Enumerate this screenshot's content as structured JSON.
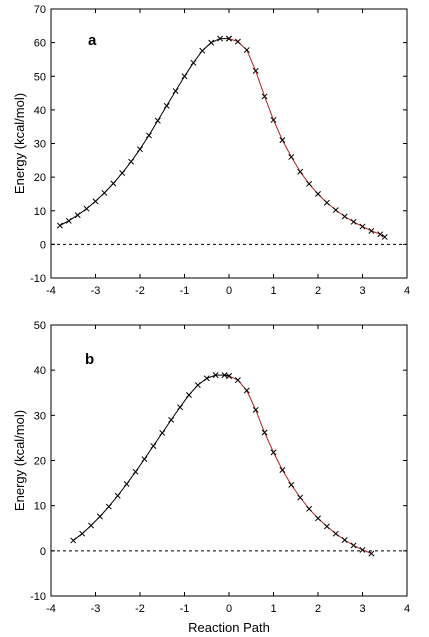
{
  "chart_data": [
    {
      "type": "line",
      "panel_label": "a",
      "xlabel": "",
      "ylabel": "Energy (kcal/mol)",
      "xlim": [
        -4,
        4
      ],
      "ylim": [
        -10,
        70
      ],
      "xticks": [
        -4,
        -3,
        -2,
        -1,
        0,
        1,
        2,
        3,
        4
      ],
      "yticks": [
        -10,
        0,
        10,
        20,
        30,
        40,
        50,
        60,
        70
      ],
      "reference_line": {
        "y": 0,
        "style": "dashed"
      },
      "series": [
        {
          "marker": "x",
          "color": "#000000",
          "x": [
            -3.8,
            -3.6,
            -3.4,
            -3.2,
            -3.0,
            -2.8,
            -2.6,
            -2.4,
            -2.2,
            -2.0,
            -1.8,
            -1.6,
            -1.4,
            -1.2,
            -1.0,
            -0.8,
            -0.6,
            -0.4,
            -0.2,
            0.0
          ],
          "y": [
            5.6,
            7.0,
            8.7,
            10.6,
            12.8,
            15.3,
            18.1,
            21.2,
            24.6,
            28.3,
            32.4,
            36.8,
            41.2,
            45.6,
            50.0,
            54.0,
            57.6,
            60.0,
            61.2,
            61.2
          ]
        },
        {
          "marker": "x",
          "color": "#b22222",
          "x": [
            0.0,
            0.2,
            0.4,
            0.6,
            0.8,
            1.0,
            1.2,
            1.4,
            1.6,
            1.8,
            2.0,
            2.2,
            2.4,
            2.6,
            2.8,
            3.0,
            3.2,
            3.4,
            3.5
          ],
          "y": [
            61.2,
            60.3,
            57.8,
            51.6,
            44.0,
            37.0,
            31.0,
            26.0,
            21.6,
            18.0,
            15.0,
            12.4,
            10.2,
            8.3,
            6.7,
            5.3,
            4.0,
            3.0,
            2.2
          ]
        }
      ]
    },
    {
      "type": "line",
      "panel_label": "b",
      "xlabel": "Reaction Path",
      "ylabel": "Energy (kcal/mol)",
      "xlim": [
        -4,
        4
      ],
      "ylim": [
        -10,
        50
      ],
      "xticks": [
        -4,
        -3,
        -2,
        -1,
        0,
        1,
        2,
        3,
        4
      ],
      "yticks": [
        -10,
        0,
        10,
        20,
        30,
        40,
        50
      ],
      "reference_line": {
        "y": 0,
        "style": "dashed"
      },
      "series": [
        {
          "marker": "x",
          "color": "#000000",
          "x": [
            -3.5,
            -3.3,
            -3.1,
            -2.9,
            -2.7,
            -2.5,
            -2.3,
            -2.1,
            -1.9,
            -1.7,
            -1.5,
            -1.3,
            -1.1,
            -0.9,
            -0.7,
            -0.5,
            -0.3,
            -0.1,
            0.0
          ],
          "y": [
            2.3,
            3.8,
            5.6,
            7.6,
            9.8,
            12.2,
            14.8,
            17.5,
            20.3,
            23.2,
            26.1,
            29.0,
            31.8,
            34.5,
            36.7,
            38.2,
            38.9,
            38.9,
            38.7
          ]
        },
        {
          "marker": "x",
          "color": "#b22222",
          "x": [
            0.0,
            0.2,
            0.4,
            0.6,
            0.8,
            1.0,
            1.2,
            1.4,
            1.6,
            1.8,
            2.0,
            2.2,
            2.4,
            2.6,
            2.8,
            3.0,
            3.2
          ],
          "y": [
            38.7,
            37.8,
            35.5,
            31.2,
            26.2,
            21.8,
            17.9,
            14.6,
            11.8,
            9.3,
            7.2,
            5.4,
            3.8,
            2.4,
            1.2,
            0.2,
            -0.6
          ]
        }
      ]
    }
  ]
}
